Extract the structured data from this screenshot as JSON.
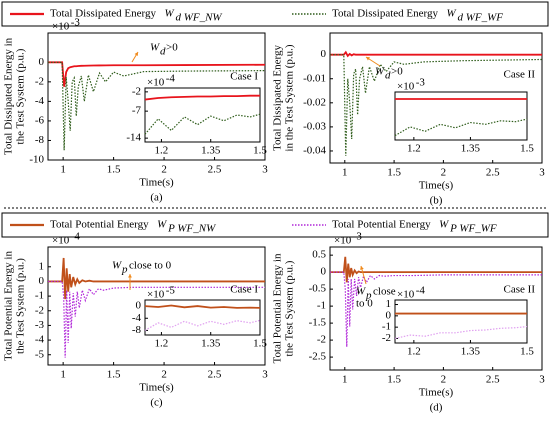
{
  "chart_data": [
    {
      "type": "line",
      "caption": "(a)",
      "case": "Case I",
      "legend": "top",
      "ylabel": [
        "Total Dissipated Energy in",
        "the Test System (p.u.)"
      ],
      "xlabel": "Time(s)",
      "y_multiplier": {
        "base": "×10",
        "exp": "-3"
      },
      "annotation": {
        "symbol": "W",
        "subscript": "d",
        "text": [
          ">0"
        ]
      },
      "xlim": [
        0.85,
        3
      ],
      "xticks": [
        1,
        1.5,
        2,
        2.5,
        3
      ],
      "ylim": [
        -10,
        3
      ],
      "yticks": [
        0,
        -2,
        -4,
        -6,
        -8,
        -10
      ],
      "x": [
        0.85,
        0.99,
        1.01,
        1.03,
        1.05,
        1.07,
        1.09,
        1.11,
        1.13,
        1.15,
        1.18,
        1.21,
        1.25,
        1.3,
        1.36,
        1.42,
        1.5,
        1.6,
        1.8,
        2.2,
        3
      ],
      "series": [
        {
          "name": "Total Dissipated Energy",
          "symbol": "W",
          "subscript": "d WF_NW",
          "color": "#e8141c",
          "dash": false,
          "values": [
            0,
            0,
            -2.5,
            -1.0,
            -0.6,
            -0.5,
            -0.45,
            -0.4,
            -0.4,
            -0.38,
            -0.36,
            -0.35,
            -0.34,
            -0.33,
            -0.32,
            -0.31,
            -0.3,
            -0.3,
            -0.3,
            -0.28,
            -0.25
          ]
        },
        {
          "name": "Total Dissipated Energy",
          "symbol": "W",
          "subscript": "d WF_WF",
          "color": "#2e5c1a",
          "dash": true,
          "values": [
            0,
            0,
            -9,
            -1.5,
            -4,
            -7,
            -2,
            -1.6,
            -5.5,
            -2.5,
            -1.4,
            -4,
            -1.3,
            -3,
            -1.1,
            -2,
            -1,
            -1.4,
            -0.95,
            -0.9,
            -0.85
          ]
        }
      ],
      "inset": {
        "y_multiplier": {
          "base": "×10",
          "exp": "-4"
        },
        "xlim": [
          1.15,
          1.5
        ],
        "xticks": [
          1.2,
          1.35,
          1.5
        ],
        "ylim": [
          -15,
          -1
        ],
        "yticks": [
          -2,
          -7,
          -14
        ],
        "x": [
          1.15,
          1.19,
          1.23,
          1.27,
          1.31,
          1.35,
          1.39,
          1.43,
          1.47,
          1.5
        ],
        "series": [
          {
            "color": "#e8141c",
            "dash": false,
            "values": [
              -4,
              -3.6,
              -3.4,
              -3.3,
              -3.2,
              -3.2,
              -3.1,
              -3.1,
              -3,
              -3
            ]
          },
          {
            "color": "#2e5c1a",
            "dash": true,
            "values": [
              -13,
              -9,
              -12,
              -8.5,
              -10.5,
              -8.3,
              -9.5,
              -8,
              -8.5,
              -7.8
            ]
          }
        ]
      }
    },
    {
      "type": "line",
      "caption": "(b)",
      "case": "Case II",
      "ylabel": [
        "Total Dissipated Energy",
        "in the Test System (p.u.)"
      ],
      "xlabel": "Time(s)",
      "annotation": {
        "symbol": "W",
        "subscript": "d",
        "text": [
          ">0"
        ]
      },
      "xlim": [
        0.85,
        3
      ],
      "xticks": [
        1,
        1.5,
        2,
        2.5,
        3
      ],
      "ylim": [
        -0.045,
        0.009
      ],
      "yticks": [
        0,
        -0.01,
        -0.02,
        -0.03,
        -0.04
      ],
      "x": [
        0.85,
        0.99,
        1.01,
        1.03,
        1.05,
        1.07,
        1.09,
        1.11,
        1.13,
        1.15,
        1.18,
        1.21,
        1.25,
        1.3,
        1.36,
        1.42,
        1.5,
        1.6,
        1.8,
        2.2,
        3
      ],
      "series": [
        {
          "color": "#e8141c",
          "dash": false,
          "values": [
            0,
            0,
            0.001,
            -0.0005,
            0.0003,
            -0.0003,
            0.0002,
            0,
            0,
            0,
            0,
            0,
            0,
            0,
            0,
            0,
            0,
            0,
            0,
            0,
            0
          ]
        },
        {
          "color": "#2e5c1a",
          "dash": true,
          "values": [
            0,
            0,
            -0.042,
            -0.01,
            -0.02,
            -0.035,
            -0.008,
            -0.006,
            -0.025,
            -0.01,
            -0.005,
            -0.016,
            -0.005,
            -0.011,
            -0.004,
            -0.007,
            -0.003,
            -0.004,
            -0.003,
            -0.0025,
            -0.002
          ]
        }
      ],
      "inset": {
        "y_multiplier": {
          "base": "×10",
          "exp": "-3"
        },
        "xlim": [
          1.15,
          1.5
        ],
        "xticks": [
          1.2,
          1.35,
          1.5
        ],
        "ylim": [
          -5,
          0.5
        ],
        "yticks": [],
        "x": [
          1.15,
          1.19,
          1.23,
          1.27,
          1.31,
          1.35,
          1.39,
          1.43,
          1.47,
          1.5
        ],
        "series": [
          {
            "color": "#e8141c",
            "dash": false,
            "values": [
              -0.3,
              -0.3,
              -0.3,
              -0.3,
              -0.3,
              -0.3,
              -0.3,
              -0.3,
              -0.3,
              -0.3
            ]
          },
          {
            "color": "#2e5c1a",
            "dash": true,
            "values": [
              -4.5,
              -3.5,
              -4,
              -3.2,
              -3.6,
              -3,
              -3.2,
              -2.8,
              -2.9,
              -2.6
            ]
          }
        ]
      }
    },
    {
      "type": "line",
      "caption": "(c)",
      "case": "Case I",
      "legend": "top",
      "ylabel": [
        "Total Potential Energy in",
        "the Test System (p.u.)"
      ],
      "xlabel": "Time(s)",
      "y_multiplier": {
        "base": "×10",
        "exp": "-4"
      },
      "annotation": {
        "symbol": "W",
        "subscript": "p",
        "text": [
          " close to 0"
        ]
      },
      "xlim": [
        0.85,
        3
      ],
      "xticks": [
        1,
        1.5,
        2,
        2.5,
        3
      ],
      "ylim": [
        -5.7,
        2.35
      ],
      "yticks": [
        1,
        0,
        -1,
        -2,
        -3,
        -4,
        -5
      ],
      "x": [
        0.85,
        0.99,
        1.005,
        1.02,
        1.035,
        1.05,
        1.065,
        1.08,
        1.1,
        1.12,
        1.14,
        1.16,
        1.19,
        1.22,
        1.26,
        1.3,
        1.35,
        1.4,
        1.5,
        1.7,
        2,
        3
      ],
      "series": [
        {
          "name": "Total Potential Energy",
          "symbol": "W",
          "subscript": "P WF_NW",
          "color": "#c0501a",
          "dash": false,
          "values": [
            0,
            0,
            1.6,
            -1.2,
            0.9,
            -0.7,
            0.5,
            -0.4,
            0.3,
            -0.2,
            0.15,
            -0.1,
            0.08,
            0,
            0.05,
            0,
            0,
            0,
            0,
            0,
            0,
            0
          ]
        },
        {
          "name": "Total Potential Energy",
          "symbol": "W",
          "subscript": "P WF_WF",
          "color": "#b026d8",
          "dash": true,
          "values": [
            0,
            0,
            -1,
            -5.2,
            -0.6,
            -4.2,
            -0.7,
            -3.2,
            -0.8,
            -2.4,
            -0.7,
            -1.8,
            -0.6,
            -1.3,
            -0.5,
            -0.9,
            -0.5,
            -0.6,
            -0.45,
            -0.4,
            -0.4,
            -0.4
          ]
        }
      ],
      "inset": {
        "y_multiplier": {
          "base": "×10",
          "exp": "-5"
        },
        "xlim": [
          1.15,
          1.5
        ],
        "xticks": [
          1.2,
          1.35,
          1.5
        ],
        "ylim": [
          -9.5,
          2
        ],
        "yticks": [
          0,
          -4,
          -8
        ],
        "x": [
          1.15,
          1.19,
          1.23,
          1.27,
          1.31,
          1.35,
          1.39,
          1.43,
          1.47,
          1.5
        ],
        "series": [
          {
            "color": "#c0501a",
            "dash": false,
            "values": [
              0,
              -0.3,
              0.2,
              -0.4,
              0,
              -0.5,
              -0.3,
              -0.6,
              -0.5,
              -0.6
            ]
          },
          {
            "color": "#e0a0f0",
            "dash": true,
            "values": [
              -8,
              -5.5,
              -7,
              -5,
              -6.5,
              -5,
              -6,
              -4.8,
              -5.5,
              -4.7
            ]
          }
        ]
      }
    },
    {
      "type": "line",
      "caption": "(d)",
      "case": "Case II",
      "ylabel": [
        "Total Potential Energy in",
        "the Test System (p.u.)"
      ],
      "xlabel": "Time(s)",
      "y_multiplier": {
        "base": "×10",
        "exp": "-3"
      },
      "annotation": {
        "symbol": "W",
        "subscript": "p",
        "text": [
          " close",
          "to 0"
        ]
      },
      "xlim": [
        0.85,
        3
      ],
      "xticks": [
        1,
        1.5,
        2,
        2.5,
        3
      ],
      "ylim": [
        -2.88,
        0.74
      ],
      "yticks": [
        0.5,
        0,
        -0.5,
        -1,
        -1.5,
        -2,
        -2.5
      ],
      "x": [
        0.85,
        0.99,
        1.005,
        1.02,
        1.035,
        1.05,
        1.065,
        1.08,
        1.1,
        1.12,
        1.14,
        1.16,
        1.19,
        1.22,
        1.26,
        1.3,
        1.35,
        1.4,
        1.5,
        1.7,
        2,
        3
      ],
      "series": [
        {
          "color": "#c0501a",
          "dash": false,
          "values": [
            0,
            0,
            0.45,
            -0.3,
            0.25,
            -0.15,
            0.12,
            -0.08,
            0.05,
            -0.03,
            0.02,
            0,
            0,
            0,
            0,
            0,
            0,
            0,
            0,
            0,
            0,
            0
          ]
        },
        {
          "color": "#b026d8",
          "dash": true,
          "values": [
            0,
            0,
            -0.5,
            -2.2,
            -0.2,
            -1.6,
            -0.2,
            -1.1,
            -0.2,
            -0.7,
            -0.15,
            -0.45,
            -0.12,
            -0.3,
            -0.1,
            -0.2,
            -0.1,
            -0.12,
            -0.1,
            -0.1,
            -0.08,
            -0.08
          ]
        }
      ],
      "inset": {
        "y_multiplier": {
          "base": "×10",
          "exp": "-4"
        },
        "xlim": [
          1.15,
          1.5
        ],
        "xticks": [
          1.2,
          1.35,
          1.5
        ],
        "ylim": [
          -2.4,
          1.4
        ],
        "yticks": [
          1,
          0,
          -1,
          -2
        ],
        "x": [
          1.15,
          1.19,
          1.23,
          1.27,
          1.31,
          1.35,
          1.39,
          1.43,
          1.47,
          1.5
        ],
        "series": [
          {
            "color": "#c0501a",
            "dash": false,
            "values": [
              0.2,
              0.2,
              0.2,
              0.2,
              0.2,
              0.2,
              0.2,
              0.2,
              0.2,
              0.2
            ]
          },
          {
            "color": "#e0a0f0",
            "dash": true,
            "values": [
              -2,
              -1.7,
              -1.8,
              -1.5,
              -1.5,
              -1.3,
              -1.25,
              -1.1,
              -1.05,
              -0.95
            ]
          }
        ]
      }
    }
  ]
}
